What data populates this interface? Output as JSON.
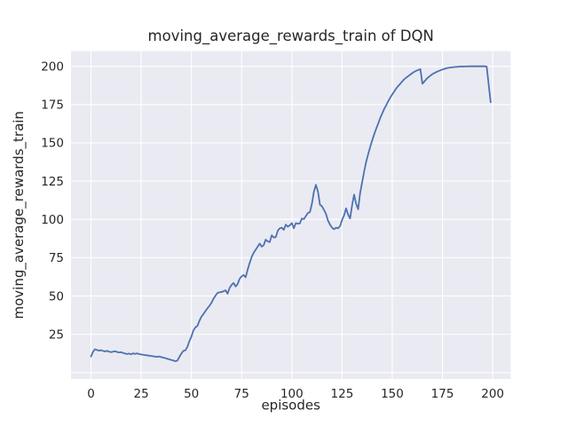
{
  "figure": {
    "background": "#ffffff",
    "axes_background": "#eaeaf2",
    "grid_color": "#ffffff",
    "text_color": "#262626",
    "line_color": "#4c72b0"
  },
  "chart_data": {
    "type": "line",
    "title": "moving_average_rewards_train of DQN",
    "xlabel": "episodes",
    "ylabel": "moving_average_rewards_train",
    "grid": true,
    "legend_position": "none",
    "xlim": [
      -9.95,
      208.95
    ],
    "ylim": [
      -4.2,
      209.9
    ],
    "xticks": [
      0,
      25,
      50,
      75,
      100,
      125,
      150,
      175,
      200
    ],
    "yticks": [
      25,
      50,
      75,
      100,
      125,
      150,
      175,
      200
    ],
    "ygrid_values": [
      0,
      25,
      50,
      75,
      100,
      125,
      150,
      175,
      200
    ],
    "series": [
      {
        "name": "moving_average_rewards_train",
        "x_start": 0,
        "x_step": 1,
        "values": [
          10.5,
          13.5,
          15.2,
          14.7,
          14.3,
          14.6,
          14.1,
          13.8,
          14.2,
          13.6,
          13.3,
          13.6,
          13.9,
          13.4,
          13.1,
          13.3,
          12.8,
          12.4,
          12.1,
          12.4,
          11.9,
          12.5,
          12.2,
          12.5,
          12.1,
          11.8,
          11.6,
          11.4,
          11.2,
          11.0,
          10.8,
          10.6,
          10.4,
          10.2,
          10.5,
          10.1,
          9.7,
          9.4,
          9.0,
          8.6,
          8.2,
          7.9,
          7.4,
          7.8,
          10.2,
          12.4,
          14.2,
          14.5,
          16.8,
          20.5,
          23.5,
          27.5,
          29.5,
          30.5,
          33.8,
          36.5,
          38.2,
          40.2,
          42.0,
          43.6,
          45.6,
          48.2,
          50.2,
          52.0,
          52.4,
          52.6,
          53.1,
          53.7,
          51.5,
          55.2,
          57.2,
          58.5,
          56.2,
          57.8,
          61.2,
          62.8,
          63.7,
          62.2,
          67.2,
          71.5,
          75.5,
          78.2,
          80.2,
          82.2,
          84.2,
          82.2,
          83.2,
          86.8,
          85.6,
          85.2,
          89.6,
          88.2,
          88.4,
          92.6,
          94.2,
          94.6,
          93.2,
          96.6,
          95.2,
          96.2,
          97.6,
          94.2,
          97.6,
          97.2,
          97.4,
          100.6,
          100.2,
          102.2,
          104.2,
          104.8,
          110.2,
          118.2,
          122.6,
          118.2,
          109.6,
          108.6,
          106.2,
          103.6,
          99.2,
          96.6,
          94.6,
          93.6,
          94.6,
          94.2,
          95.6,
          99.6,
          102.6,
          107.2,
          103.2,
          100.6,
          109.2,
          116.2,
          110.2,
          106.6,
          117.2,
          124.2,
          131.2,
          137.6,
          142.6,
          147.2,
          151.6,
          155.6,
          159.2,
          162.6,
          166.2,
          169.2,
          172.2,
          174.6,
          177.2,
          179.6,
          181.6,
          183.6,
          185.6,
          187.2,
          188.6,
          190.2,
          191.6,
          192.6,
          193.6,
          194.6,
          195.6,
          196.4,
          197.1,
          197.6,
          198.1,
          188.6,
          190.1,
          191.6,
          192.9,
          193.9,
          194.9,
          195.6,
          196.3,
          196.9,
          197.4,
          197.9,
          198.3,
          198.7,
          199.0,
          199.2,
          199.4,
          199.5,
          199.6,
          199.7,
          199.8,
          199.85,
          199.9,
          199.9,
          199.95,
          200.0,
          200.0,
          200.0,
          200.0,
          200.0,
          200.0,
          200.0,
          200.0,
          199.8,
          188.0,
          176.5
        ]
      }
    ]
  }
}
